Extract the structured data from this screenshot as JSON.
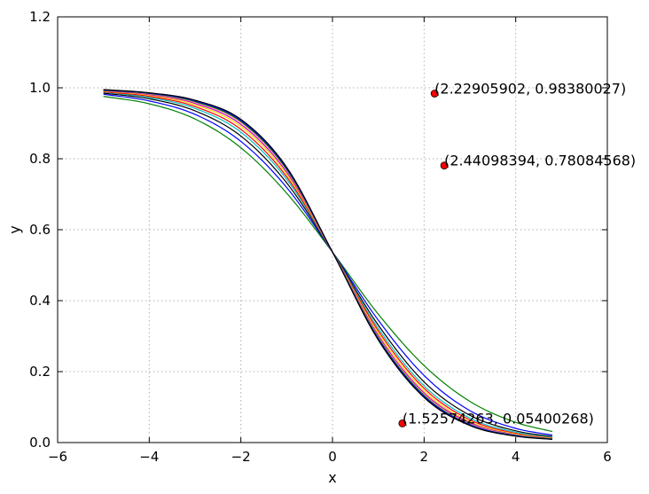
{
  "chart_data": {
    "type": "line",
    "title": "",
    "xlabel": "x",
    "ylabel": "y",
    "xlim": [
      -6,
      6
    ],
    "ylim": [
      0.0,
      1.2
    ],
    "xticks": [
      -6,
      -4,
      -2,
      0,
      2,
      4,
      6
    ],
    "xtick_labels": [
      "−6",
      "−4",
      "−2",
      "0",
      "2",
      "4",
      "6"
    ],
    "yticks": [
      0.0,
      0.2,
      0.4,
      0.6,
      0.8,
      1.0,
      1.2
    ],
    "ytick_labels": [
      "0.0",
      "0.2",
      "0.4",
      "0.6",
      "0.8",
      "1.0",
      "1.2"
    ],
    "grid": true,
    "legend": "none",
    "x": [
      -5.0,
      -4.0,
      -3.0,
      -2.0,
      -1.0,
      0.0,
      1.0,
      2.0,
      3.0,
      4.0,
      4.8
    ],
    "series": [
      {
        "color": "#008000",
        "values": [
          0.976,
          0.955,
          0.912,
          0.831,
          0.703,
          0.537,
          0.362,
          0.217,
          0.116,
          0.057,
          0.031
        ]
      },
      {
        "color": "#0000ff",
        "values": [
          0.982,
          0.963,
          0.925,
          0.849,
          0.719,
          0.537,
          0.345,
          0.189,
          0.09,
          0.04,
          0.021
        ]
      },
      {
        "color": "#000000",
        "values": [
          0.985,
          0.969,
          0.935,
          0.864,
          0.732,
          0.537,
          0.331,
          0.171,
          0.077,
          0.033,
          0.017
        ]
      },
      {
        "color": "#00bfbf",
        "values": [
          0.988,
          0.973,
          0.942,
          0.875,
          0.742,
          0.537,
          0.322,
          0.16,
          0.069,
          0.029,
          0.015
        ]
      },
      {
        "color": "#ff0000",
        "values": [
          0.989,
          0.976,
          0.947,
          0.883,
          0.749,
          0.537,
          0.315,
          0.153,
          0.064,
          0.026,
          0.013
        ]
      },
      {
        "color": "#ffd700",
        "values": [
          0.991,
          0.979,
          0.952,
          0.891,
          0.756,
          0.537,
          0.308,
          0.146,
          0.059,
          0.024,
          0.012
        ]
      },
      {
        "color": "#bf00bf",
        "values": [
          0.992,
          0.981,
          0.956,
          0.897,
          0.762,
          0.537,
          0.302,
          0.14,
          0.056,
          0.022,
          0.011
        ]
      },
      {
        "color": "#ff9999",
        "values": [
          0.993,
          0.983,
          0.959,
          0.902,
          0.767,
          0.537,
          0.298,
          0.136,
          0.053,
          0.021,
          0.01
        ]
      },
      {
        "color": "#008000",
        "values": [
          0.993,
          0.984,
          0.961,
          0.905,
          0.77,
          0.537,
          0.295,
          0.133,
          0.051,
          0.02,
          0.01
        ]
      },
      {
        "color": "#0000ff",
        "values": [
          0.994,
          0.985,
          0.963,
          0.908,
          0.773,
          0.537,
          0.292,
          0.13,
          0.05,
          0.019,
          0.009
        ]
      },
      {
        "color": "#000000",
        "values": [
          0.995,
          0.986,
          0.965,
          0.911,
          0.776,
          0.537,
          0.289,
          0.127,
          0.048,
          0.018,
          0.009
        ]
      }
    ],
    "points": [
      {
        "x": 2.22905902,
        "y": 0.98380027,
        "label": "(2.22905902, 0.98380027)",
        "color": "#ff0000"
      },
      {
        "x": 2.44098394,
        "y": 0.78084568,
        "label": "(2.44098394, 0.78084568)",
        "color": "#ff0000"
      },
      {
        "x": 1.52574263,
        "y": 0.05400268,
        "label": "(1.52574263, 0.05400268)",
        "color": "#ff0000"
      }
    ]
  }
}
